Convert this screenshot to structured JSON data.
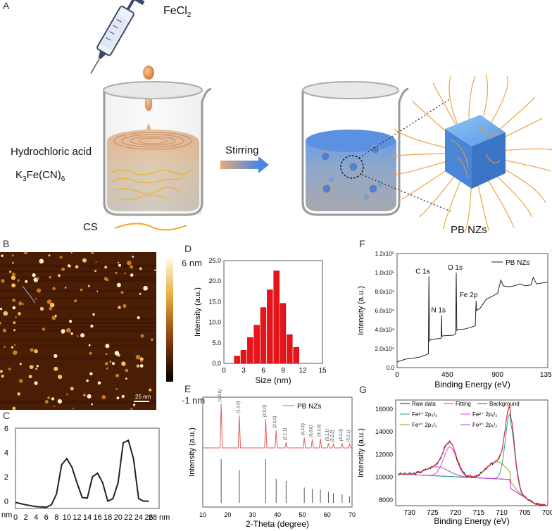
{
  "panels": {
    "a": "A",
    "b": "B",
    "c": "C",
    "d": "D",
    "e": "E",
    "f": "F",
    "g": "G"
  },
  "schematic": {
    "fecl2_main": "FeCl",
    "fecl2_sub": "2",
    "hcl": "Hydrochloric acid",
    "k3fe_a": "K",
    "k3fe_b": "3",
    "k3fe_c": "Fe(CN)",
    "k3fe_d": "6",
    "cs": "CS",
    "stirring": "Stirring",
    "pbnzs": "PB NZs"
  },
  "afm": {
    "scale_top": "6 nm",
    "scale_bottom": "-1 nm",
    "scalebar": "25 nm"
  },
  "colors": {
    "bar_red": "#e8141a",
    "xrd_red": "#e85a5a",
    "black": "#222222"
  },
  "chart_data": [
    {
      "id": "C",
      "type": "line",
      "x": [
        0,
        2,
        4,
        6,
        7,
        8,
        9,
        10,
        11,
        12,
        13,
        14,
        15,
        16,
        17,
        18,
        19,
        20,
        21,
        22,
        23,
        24,
        25,
        26
      ],
      "values": [
        -0.1,
        -0.3,
        -0.45,
        -0.5,
        -0.3,
        0.6,
        3.0,
        3.5,
        2.8,
        1.5,
        0.3,
        0.25,
        2.0,
        2.3,
        1.5,
        0.0,
        0.2,
        1.5,
        4.8,
        5.0,
        3.5,
        0.2,
        0.0,
        0.0
      ],
      "xticks": [
        "0",
        "2",
        "4",
        "6",
        "8",
        "10",
        "12",
        "14",
        "16",
        "18",
        "20",
        "22",
        "24",
        "26",
        "28 nm"
      ],
      "yticks": [
        "0",
        "2",
        "4",
        "6"
      ],
      "ylabel_unit": "nm",
      "xlim": [
        0,
        28
      ],
      "ylim": [
        -0.6,
        6
      ]
    },
    {
      "id": "D",
      "type": "bar",
      "x": [
        2,
        3,
        4,
        5,
        6,
        7,
        8,
        9,
        10,
        11
      ],
      "values": [
        1.8,
        3.2,
        6.3,
        9.3,
        13.6,
        17.9,
        22.5,
        14.6,
        7.0,
        3.9
      ],
      "xlabel": "Size (nm)",
      "ylabel": "Intensity (a.u.)",
      "xticks": [
        "0",
        "3",
        "6",
        "9",
        "12",
        "15"
      ],
      "yticks": [
        "0.0",
        "5.0",
        "10.0",
        "15.0",
        "20.0",
        "25.0"
      ],
      "xlim": [
        0,
        15
      ],
      "ylim": [
        0,
        25
      ]
    },
    {
      "id": "E",
      "type": "line",
      "legend": "PB NZs",
      "xlabel": "2-Theta (degree)",
      "ylabel": "Intensity (a.u.)",
      "xticks": [
        "10",
        "20",
        "30",
        "40",
        "50",
        "60",
        "70"
      ],
      "xlim": [
        10,
        70
      ],
      "peaks": [
        {
          "x": 17.4,
          "h": 0.95,
          "label": "(1,0,0)"
        },
        {
          "x": 24.7,
          "h": 0.7,
          "label": "(1,1,0)"
        },
        {
          "x": 35.3,
          "h": 0.62,
          "label": "(2,0,0)"
        },
        {
          "x": 39.5,
          "h": 0.38,
          "label": "(2,1,0)"
        },
        {
          "x": 43.5,
          "h": 0.12,
          "label": "(2,1,1)"
        },
        {
          "x": 50.8,
          "h": 0.22,
          "label": "(2,2,0)"
        },
        {
          "x": 54.0,
          "h": 0.18,
          "label": "(3,0,0)"
        },
        {
          "x": 57.3,
          "h": 0.2,
          "label": "(3,1,0)"
        },
        {
          "x": 60.5,
          "h": 0.1,
          "label": "(3,1,1)"
        },
        {
          "x": 62.5,
          "h": 0.08,
          "label": "(2,2,2)"
        },
        {
          "x": 66.0,
          "h": 0.1,
          "label": "(3,2,0)"
        },
        {
          "x": 69.0,
          "h": 0.08,
          "label": "(3,2,1)"
        }
      ],
      "ref_sticks": [
        [
          17.4,
          1.0
        ],
        [
          24.7,
          0.75
        ],
        [
          35.3,
          1.0
        ],
        [
          39.5,
          0.55
        ],
        [
          43.5,
          0.5
        ],
        [
          50.8,
          0.35
        ],
        [
          54.0,
          0.32
        ],
        [
          57.3,
          0.3
        ],
        [
          60.5,
          0.25
        ],
        [
          62.5,
          0.22
        ],
        [
          66.0,
          0.2
        ],
        [
          69.0,
          0.15
        ]
      ]
    },
    {
      "id": "F",
      "type": "line",
      "legend": "PB NZs",
      "xlabel": "Binding Energy (eV)",
      "ylabel": "Intensity (a.u.)",
      "xticks": [
        "0",
        "450",
        "900",
        "1350"
      ],
      "yticks": [
        "0.0",
        "2.0x10⁴",
        "4.0x10⁴",
        "6.0x10⁴",
        "8.0x10⁴",
        "1.0x10⁵",
        "1.2x10⁵"
      ],
      "xlim": [
        0,
        1350
      ],
      "ylim": [
        0,
        120000
      ],
      "annotations": [
        "C 1s",
        "N 1s",
        "O 1s",
        "Fe 2p"
      ],
      "x": [
        0,
        80,
        150,
        200,
        250,
        280,
        285,
        290,
        300,
        395,
        398,
        402,
        420,
        500,
        525,
        530,
        535,
        545,
        600,
        650,
        700,
        708,
        711,
        720,
        740,
        800,
        850,
        900,
        930,
        950,
        1000,
        1050,
        1100,
        1150,
        1200,
        1220,
        1250,
        1300,
        1350
      ],
      "values": [
        6000,
        9000,
        10000,
        11000,
        13000,
        14500,
        96000,
        28000,
        29500,
        31000,
        55000,
        33000,
        33500,
        34000,
        36000,
        100000,
        39000,
        40000,
        40500,
        42000,
        44000,
        70000,
        60000,
        61000,
        62000,
        72000,
        75000,
        78000,
        92000,
        86000,
        85000,
        86000,
        88000,
        86000,
        87000,
        95000,
        88000,
        89000,
        90000
      ]
    },
    {
      "id": "G",
      "type": "line",
      "xlabel": "Binding Energy (eV)",
      "ylabel": "Intensity (a.u.)",
      "xticks": [
        "730",
        "725",
        "720",
        "715",
        "710",
        "705",
        "700"
      ],
      "yticks": [
        "8000",
        "10000",
        "12000",
        "14000",
        "16000"
      ],
      "xlim": [
        733,
        700
      ],
      "ylim": [
        7500,
        16800
      ],
      "legend": [
        "Raw data",
        "Fitting",
        "Background",
        "Fe2+ 2p3/2",
        "Fe2+ 2p1/2",
        "Fe3+ 2p3/2",
        "Fe3+ 2p1/2"
      ]
    }
  ]
}
